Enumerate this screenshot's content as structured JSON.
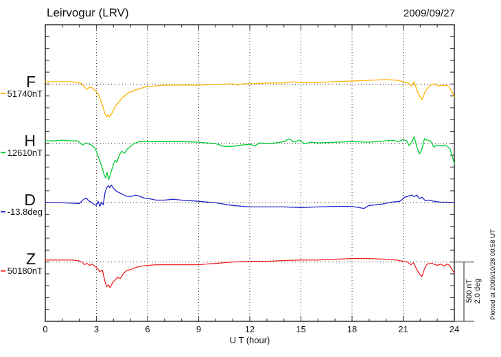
{
  "chart_data": {
    "type": "line",
    "title": "Leirvogur (LRV)",
    "date": "2009/09/27",
    "xlabel": "U T (hour)",
    "x_range": [
      0,
      24
    ],
    "x_ticks": [
      0,
      3,
      6,
      9,
      12,
      15,
      18,
      21,
      24
    ],
    "grid": "vertical dotted gridlines every 3 hours; horizontal dotted baseline for each trace",
    "legend_position": "left margin colored labels (F, H, D, Z)",
    "scale_bar": {
      "label_nT": "500 nT",
      "label_deg": "2.0 deg",
      "nT_per_bar": 500,
      "deg_per_bar": 2.0
    },
    "plotted_at": "Plotted at 2009/10/28 00:58 UT",
    "points_format": "[UT_hour, deviation_from_baseline] (nT for F/H/Z, degrees for D)",
    "series": [
      {
        "name": "F",
        "label": "F",
        "value_label": "51740nT",
        "baseline": 51740,
        "unit": "nT",
        "color": "#FFB300",
        "points": [
          [
            0,
            23
          ],
          [
            0.5,
            23
          ],
          [
            1,
            23
          ],
          [
            1.5,
            23
          ],
          [
            1.9,
            17
          ],
          [
            2.15,
            6
          ],
          [
            2.3,
            -23
          ],
          [
            2.45,
            -41
          ],
          [
            2.6,
            -23
          ],
          [
            2.75,
            -29
          ],
          [
            2.9,
            -47
          ],
          [
            3,
            -64
          ],
          [
            3.1,
            -81
          ],
          [
            3.2,
            -116
          ],
          [
            3.35,
            -174
          ],
          [
            3.5,
            -244
          ],
          [
            3.6,
            -273
          ],
          [
            3.68,
            -256
          ],
          [
            3.78,
            -273
          ],
          [
            3.95,
            -233
          ],
          [
            4.1,
            -186
          ],
          [
            4.3,
            -151
          ],
          [
            4.5,
            -116
          ],
          [
            4.8,
            -76
          ],
          [
            5.1,
            -58
          ],
          [
            5.4,
            -41
          ],
          [
            5.7,
            -29
          ],
          [
            6,
            -17
          ],
          [
            6.5,
            -12
          ],
          [
            7,
            -6
          ],
          [
            8,
            -6
          ],
          [
            9,
            -6
          ],
          [
            10,
            0
          ],
          [
            11,
            6
          ],
          [
            11.3,
            -6
          ],
          [
            11.6,
            6
          ],
          [
            12,
            6
          ],
          [
            13,
            12
          ],
          [
            14,
            12
          ],
          [
            14.5,
            23
          ],
          [
            15,
            17
          ],
          [
            16,
            17
          ],
          [
            17,
            23
          ],
          [
            18,
            29
          ],
          [
            19,
            35
          ],
          [
            20,
            41
          ],
          [
            20.7,
            35
          ],
          [
            21,
            23
          ],
          [
            21.3,
            12
          ],
          [
            21.5,
            -12
          ],
          [
            21.65,
            23
          ],
          [
            21.8,
            -47
          ],
          [
            21.95,
            -93
          ],
          [
            22.1,
            -128
          ],
          [
            22.25,
            -76
          ],
          [
            22.4,
            -35
          ],
          [
            22.55,
            -12
          ],
          [
            22.7,
            0
          ],
          [
            22.9,
            6
          ],
          [
            23.05,
            -17
          ],
          [
            23.2,
            -6
          ],
          [
            23.4,
            -12
          ],
          [
            23.55,
            -6
          ],
          [
            23.7,
            -23
          ],
          [
            23.85,
            -58
          ],
          [
            24,
            -105
          ]
        ]
      },
      {
        "name": "H",
        "label": "H",
        "value_label": "12610nT",
        "baseline": 12610,
        "unit": "nT",
        "color": "#00CC33",
        "points": [
          [
            0,
            23
          ],
          [
            0.5,
            23
          ],
          [
            1,
            29
          ],
          [
            1.5,
            23
          ],
          [
            1.9,
            23
          ],
          [
            2.2,
            -12
          ],
          [
            2.35,
            6
          ],
          [
            2.5,
            0
          ],
          [
            2.7,
            -12
          ],
          [
            2.9,
            -35
          ],
          [
            3.05,
            -81
          ],
          [
            3.15,
            -128
          ],
          [
            3.3,
            -186
          ],
          [
            3.45,
            -262
          ],
          [
            3.55,
            -291
          ],
          [
            3.62,
            -244
          ],
          [
            3.72,
            -302
          ],
          [
            3.85,
            -244
          ],
          [
            4,
            -174
          ],
          [
            4.1,
            -140
          ],
          [
            4.2,
            -157
          ],
          [
            4.35,
            -93
          ],
          [
            4.5,
            -64
          ],
          [
            4.65,
            -81
          ],
          [
            4.8,
            -47
          ],
          [
            5,
            -23
          ],
          [
            5.2,
            0
          ],
          [
            5.5,
            17
          ],
          [
            6,
            17
          ],
          [
            7,
            17
          ],
          [
            8,
            17
          ],
          [
            9,
            12
          ],
          [
            10,
            0
          ],
          [
            10.5,
            -23
          ],
          [
            11,
            -23
          ],
          [
            11.5,
            -12
          ],
          [
            12,
            -6
          ],
          [
            12.3,
            -17
          ],
          [
            12.6,
            6
          ],
          [
            13,
            0
          ],
          [
            13.5,
            6
          ],
          [
            14,
            17
          ],
          [
            14.3,
            41
          ],
          [
            14.6,
            12
          ],
          [
            14.9,
            29
          ],
          [
            15.2,
            0
          ],
          [
            15.6,
            12
          ],
          [
            16,
            6
          ],
          [
            17,
            12
          ],
          [
            18,
            17
          ],
          [
            19,
            12
          ],
          [
            20,
            23
          ],
          [
            20.4,
            29
          ],
          [
            20.7,
            17
          ],
          [
            21,
            35
          ],
          [
            21.2,
            23
          ],
          [
            21.35,
            -17
          ],
          [
            21.5,
            12
          ],
          [
            21.65,
            58
          ],
          [
            21.8,
            -29
          ],
          [
            21.95,
            -87
          ],
          [
            22.1,
            -47
          ],
          [
            22.25,
            41
          ],
          [
            22.4,
            29
          ],
          [
            22.6,
            23
          ],
          [
            22.8,
            -29
          ],
          [
            23,
            -12
          ],
          [
            23.2,
            -17
          ],
          [
            23.45,
            -12
          ],
          [
            23.6,
            -23
          ],
          [
            23.75,
            -47
          ],
          [
            23.88,
            -105
          ],
          [
            24,
            -169
          ]
        ]
      },
      {
        "name": "D",
        "label": "D",
        "value_label": "-13.8deg",
        "baseline": -13.8,
        "unit": "deg",
        "color": "#2222CC",
        "points": [
          [
            0,
            0
          ],
          [
            1,
            0
          ],
          [
            2,
            -0.02
          ],
          [
            2.25,
            0.12
          ],
          [
            2.4,
            0.16
          ],
          [
            2.55,
            0.07
          ],
          [
            2.7,
            0.02
          ],
          [
            2.85,
            -0.05
          ],
          [
            3,
            -0.09
          ],
          [
            3.1,
            0.05
          ],
          [
            3.2,
            -0.12
          ],
          [
            3.3,
            0.02
          ],
          [
            3.4,
            -0.07
          ],
          [
            3.5,
            0.33
          ],
          [
            3.6,
            0.51
          ],
          [
            3.7,
            0.58
          ],
          [
            3.78,
            0.51
          ],
          [
            3.88,
            0.6
          ],
          [
            4,
            0.49
          ],
          [
            4.15,
            0.4
          ],
          [
            4.3,
            0.35
          ],
          [
            4.5,
            0.3
          ],
          [
            4.7,
            0.23
          ],
          [
            5,
            0.21
          ],
          [
            5.3,
            0.26
          ],
          [
            5.5,
            0.23
          ],
          [
            5.8,
            0.16
          ],
          [
            6.1,
            0.14
          ],
          [
            6.5,
            0.09
          ],
          [
            7,
            0.09
          ],
          [
            7.5,
            0.12
          ],
          [
            8,
            0.09
          ],
          [
            9,
            0.05
          ],
          [
            10,
            0
          ],
          [
            11,
            -0.09
          ],
          [
            12,
            -0.14
          ],
          [
            13,
            -0.14
          ],
          [
            14,
            -0.14
          ],
          [
            15,
            -0.16
          ],
          [
            16,
            -0.14
          ],
          [
            17,
            -0.12
          ],
          [
            18,
            -0.12
          ],
          [
            18.7,
            -0.19
          ],
          [
            19,
            -0.09
          ],
          [
            19.7,
            -0.05
          ],
          [
            20.3,
            0.02
          ],
          [
            20.8,
            0.05
          ],
          [
            21.1,
            0.19
          ],
          [
            21.3,
            0.23
          ],
          [
            21.5,
            0.26
          ],
          [
            21.65,
            0.21
          ],
          [
            21.8,
            0.26
          ],
          [
            21.95,
            0.14
          ],
          [
            22.1,
            0.19
          ],
          [
            22.3,
            0.07
          ],
          [
            22.5,
            0.09
          ],
          [
            22.8,
            0.05
          ],
          [
            23.2,
            0.02
          ],
          [
            23.6,
            0.02
          ],
          [
            24,
            0
          ]
        ]
      },
      {
        "name": "Z",
        "label": "Z",
        "value_label": "50180nT",
        "baseline": 50180,
        "unit": "nT",
        "color": "#EE2222",
        "points": [
          [
            0,
            17
          ],
          [
            0.5,
            17
          ],
          [
            1,
            17
          ],
          [
            1.5,
            17
          ],
          [
            1.9,
            12
          ],
          [
            2.15,
            0
          ],
          [
            2.3,
            -23
          ],
          [
            2.45,
            -12
          ],
          [
            2.6,
            -29
          ],
          [
            2.75,
            -17
          ],
          [
            2.9,
            -35
          ],
          [
            3.05,
            -52
          ],
          [
            3.2,
            -81
          ],
          [
            3.35,
            -70
          ],
          [
            3.5,
            -163
          ],
          [
            3.6,
            -209
          ],
          [
            3.7,
            -192
          ],
          [
            3.8,
            -215
          ],
          [
            3.95,
            -174
          ],
          [
            4.1,
            -151
          ],
          [
            4.25,
            -128
          ],
          [
            4.4,
            -140
          ],
          [
            4.6,
            -93
          ],
          [
            4.8,
            -70
          ],
          [
            5,
            -64
          ],
          [
            5.3,
            -47
          ],
          [
            5.6,
            -35
          ],
          [
            6,
            -29
          ],
          [
            6.5,
            -23
          ],
          [
            7,
            -23
          ],
          [
            8,
            -23
          ],
          [
            9,
            -23
          ],
          [
            9.5,
            -17
          ],
          [
            10,
            -12
          ],
          [
            10.5,
            -6
          ],
          [
            11,
            0
          ],
          [
            12,
            6
          ],
          [
            13,
            6
          ],
          [
            14,
            12
          ],
          [
            15,
            17
          ],
          [
            16,
            17
          ],
          [
            17,
            23
          ],
          [
            18,
            29
          ],
          [
            19,
            29
          ],
          [
            20,
            23
          ],
          [
            20.6,
            17
          ],
          [
            21,
            6
          ],
          [
            21.25,
            0
          ],
          [
            21.45,
            -23
          ],
          [
            21.6,
            -6
          ],
          [
            21.8,
            -64
          ],
          [
            22,
            -110
          ],
          [
            22.1,
            -122
          ],
          [
            22.25,
            -58
          ],
          [
            22.4,
            -17
          ],
          [
            22.7,
            -12
          ],
          [
            23,
            -29
          ],
          [
            23.2,
            -17
          ],
          [
            23.4,
            -35
          ],
          [
            23.6,
            -17
          ],
          [
            23.75,
            -35
          ],
          [
            23.9,
            -70
          ],
          [
            24,
            -93
          ]
        ]
      }
    ]
  }
}
